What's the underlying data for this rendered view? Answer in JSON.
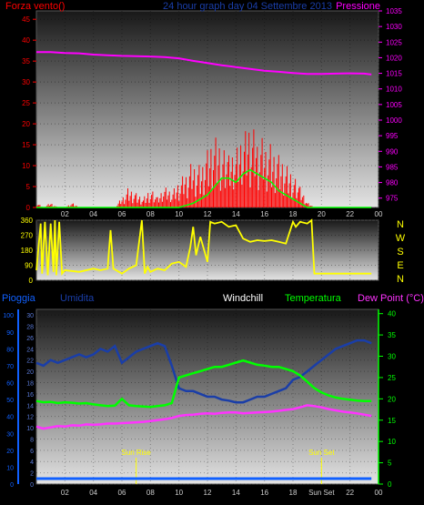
{
  "colors": {
    "wind": "#ff0000",
    "gust": "#00ff00",
    "pressure": "#ff00ff",
    "direction": "#ffff00",
    "rain": "#1060ff",
    "humidity": "#1a3ea8",
    "windchill": "#ffffff",
    "temperature": "#00ff00",
    "dewpoint": "#ff33ff",
    "axis": "#bbbbbb"
  },
  "chart_data": [
    {
      "type": "line",
      "id": "wind-pressure",
      "title": "24 hour graph day  04 Settembre 2013",
      "left_label": "Forza vento()",
      "right_label": "Pressione",
      "x_ticks": [
        "02",
        "04",
        "06",
        "08",
        "10",
        "12",
        "14",
        "16",
        "18",
        "20",
        "22",
        "00"
      ],
      "ylim_left": [
        0,
        47
      ],
      "yticks_left": [
        "0",
        "5",
        "10",
        "15",
        "20",
        "25",
        "30",
        "35",
        "40",
        "45"
      ],
      "ylim_right": [
        972,
        1035
      ],
      "yticks_right": [
        "975",
        "980",
        "985",
        "990",
        "995",
        "1000",
        "1005",
        "1010",
        "1015",
        "1020",
        "1025",
        "1030",
        "1035"
      ],
      "x_hours": [
        0,
        23.5
      ],
      "series": [
        {
          "role": "pressure",
          "axis": "right",
          "x": [
            0,
            1,
            2,
            3,
            4,
            5,
            6,
            7,
            8,
            9,
            10,
            11,
            12,
            13,
            14,
            15,
            16,
            17,
            18,
            19,
            20,
            21,
            22,
            23,
            23.5
          ],
          "y": [
            1021.8,
            1021.8,
            1021.5,
            1021.4,
            1021.0,
            1020.8,
            1020.6,
            1020.5,
            1020.4,
            1020.2,
            1019.8,
            1019.0,
            1018.3,
            1017.6,
            1017.0,
            1016.4,
            1015.8,
            1015.5,
            1015.1,
            1014.8,
            1014.8,
            1014.9,
            1015.0,
            1014.9,
            1014.6
          ]
        },
        {
          "role": "wind",
          "axis": "left",
          "x": [
            0,
            0.5,
            1,
            1.5,
            2,
            2.5,
            3,
            3.5,
            4,
            4.5,
            5,
            5.5,
            6,
            6.5,
            7,
            7.5,
            8,
            8.5,
            9,
            9.5,
            10,
            10.5,
            11,
            11.5,
            12,
            12.5,
            13,
            13.5,
            14,
            14.5,
            15,
            15.5,
            16,
            16.5,
            17,
            17.5,
            18,
            18.5,
            19,
            19.5,
            20,
            21,
            22,
            23,
            23.5
          ],
          "y": [
            1,
            0,
            1,
            0,
            0,
            1,
            0,
            0,
            0,
            0,
            0,
            0,
            2,
            4,
            3,
            2,
            4,
            2,
            4,
            3,
            5,
            7,
            9,
            8,
            12,
            15,
            13,
            10,
            11,
            14,
            16,
            14,
            13,
            12,
            11,
            9,
            7,
            4,
            1,
            0,
            0,
            0,
            0,
            0,
            0
          ]
        },
        {
          "role": "gust",
          "axis": "left",
          "x": [
            0,
            10,
            10.5,
            11,
            11.5,
            12,
            12.5,
            13,
            13.5,
            14,
            14.5,
            15,
            15.5,
            16,
            16.5,
            17,
            17.5,
            18,
            18.5,
            19,
            23.5
          ],
          "y": [
            0,
            0,
            0.5,
            1,
            2,
            3,
            5,
            7,
            7,
            6,
            8,
            9,
            8,
            7,
            6,
            4,
            3,
            2,
            1,
            0,
            0
          ]
        }
      ]
    },
    {
      "type": "line",
      "id": "wind-direction",
      "yticks": [
        "0",
        "90",
        "180",
        "270",
        "360"
      ],
      "ylim": [
        0,
        360
      ],
      "direction_labels": [
        "N",
        "W",
        "S",
        "E",
        "N"
      ],
      "series": [
        {
          "role": "direction",
          "x": [
            0,
            0.3,
            0.4,
            0.6,
            0.8,
            1.0,
            1.2,
            1.3,
            1.4,
            1.6,
            1.8,
            2,
            3,
            4,
            4.5,
            5,
            5.2,
            5.4,
            5.6,
            6,
            6.5,
            7,
            7.4,
            7.6,
            7.8,
            8,
            8.5,
            9,
            9.5,
            10,
            10.5,
            10.8,
            11,
            11.2,
            11.5,
            12,
            12.2,
            12.5,
            13,
            13.5,
            14,
            14.5,
            15,
            15.5,
            16,
            16.5,
            17,
            17.5,
            18,
            18.2,
            18.5,
            19,
            19.3,
            19.5,
            20,
            21,
            22,
            23,
            23.5
          ],
          "y": [
            60,
            340,
            40,
            350,
            30,
            340,
            50,
            360,
            30,
            350,
            40,
            60,
            50,
            70,
            60,
            70,
            300,
            70,
            60,
            40,
            70,
            90,
            360,
            40,
            80,
            50,
            70,
            60,
            100,
            110,
            80,
            200,
            320,
            150,
            260,
            110,
            350,
            340,
            350,
            320,
            330,
            250,
            230,
            240,
            235,
            240,
            230,
            220,
            350,
            320,
            350,
            340,
            360,
            40,
            40,
            40,
            40,
            40,
            40
          ]
        }
      ]
    },
    {
      "type": "line",
      "id": "humidity-temperature",
      "labels": {
        "rain": "Pioggia",
        "humidity": "Umidita",
        "windchill": "Windchill",
        "temperature": "Temperatura",
        "dewpoint": "Dew Point (°C)"
      },
      "yticks_rain": [
        "0",
        "10",
        "20",
        "30",
        "40",
        "50",
        "60",
        "70",
        "80",
        "90",
        "100"
      ],
      "yticks_humidity": [
        "0",
        "2",
        "4",
        "6",
        "8",
        "10",
        "12",
        "14",
        "16",
        "18",
        "20",
        "22",
        "24",
        "26",
        "28",
        "30"
      ],
      "yticks_temp": [
        "0",
        "5",
        "10",
        "15",
        "20",
        "25",
        "30",
        "35",
        "40"
      ],
      "ylim_humidity": [
        0,
        31
      ],
      "ylim_temp": [
        0,
        41
      ],
      "x_ticks": [
        "02",
        "04",
        "06",
        "08",
        "10",
        "12",
        "14",
        "16",
        "18",
        "Sun Set",
        "22",
        "00"
      ],
      "sun_rise": {
        "label": "Sun Rise",
        "hour": 7.0
      },
      "sun_set": {
        "label": "Sun Set",
        "hour": 20.0
      },
      "series": [
        {
          "role": "humidity",
          "x": [
            0,
            0.5,
            1,
            1.5,
            2,
            2.5,
            3,
            3.5,
            4,
            4.5,
            5,
            5.5,
            6,
            6.5,
            7,
            7.5,
            8,
            8.5,
            9,
            9.5,
            10,
            10.5,
            11,
            11.5,
            12,
            12.5,
            13,
            13.5,
            14,
            14.5,
            15,
            15.5,
            16,
            16.5,
            17,
            17.5,
            18,
            18.5,
            19,
            19.5,
            20,
            20.5,
            21,
            21.5,
            22,
            22.5,
            23,
            23.5
          ],
          "y": [
            21.5,
            21,
            22,
            21.5,
            22,
            22.5,
            23,
            22.5,
            23,
            24,
            23.5,
            24.5,
            21.5,
            22.5,
            23.5,
            24,
            24.5,
            25,
            24.5,
            21,
            17,
            16.5,
            16.5,
            16,
            15.5,
            15.5,
            15,
            14.8,
            14.5,
            14.5,
            15,
            15.5,
            15.5,
            16,
            16.5,
            17,
            18.5,
            19,
            20,
            21,
            22,
            23,
            24,
            24.5,
            25,
            25.5,
            25.5,
            25
          ]
        },
        {
          "role": "temperature",
          "x": [
            0,
            0.5,
            1,
            1.5,
            2,
            2.5,
            3,
            3.5,
            4,
            4.5,
            5,
            5.5,
            6,
            6.5,
            7,
            7.5,
            8,
            8.5,
            9,
            9.5,
            10,
            10.5,
            11,
            11.5,
            12,
            12.5,
            13,
            13.5,
            14,
            14.5,
            15,
            15.5,
            16,
            16.5,
            17,
            17.5,
            18,
            18.5,
            19,
            19.5,
            20,
            20.5,
            21,
            21.5,
            22,
            22.5,
            23,
            23.5
          ],
          "y": [
            19.5,
            19.2,
            19.3,
            19,
            19.2,
            19.1,
            18.9,
            19,
            18.7,
            18.5,
            18.3,
            18.4,
            20,
            18.5,
            18.3,
            18.2,
            18.1,
            18.3,
            18.5,
            19,
            25,
            25.5,
            26,
            26.5,
            27,
            27.5,
            27.5,
            28,
            28.5,
            29,
            28.5,
            28,
            27.8,
            27.5,
            27.5,
            27,
            26.5,
            25.5,
            24,
            22.5,
            21.5,
            20.8,
            20.3,
            20,
            19.8,
            19.6,
            19.5,
            19.5
          ]
        },
        {
          "role": "dewpoint",
          "x": [
            0,
            0.5,
            1,
            1.5,
            2,
            2.5,
            3,
            3.5,
            4,
            4.5,
            5,
            5.5,
            6,
            6.5,
            7,
            7.5,
            8,
            8.5,
            9,
            9.5,
            10,
            10.5,
            11,
            11.5,
            12,
            12.5,
            13,
            13.5,
            14,
            14.5,
            15,
            15.5,
            16,
            16.5,
            17,
            17.5,
            18,
            18.5,
            19,
            19.5,
            20,
            20.5,
            21,
            21.5,
            22,
            22.5,
            23,
            23.5
          ],
          "y": [
            13.5,
            13,
            13.3,
            13.6,
            13.5,
            13.8,
            13.7,
            14,
            13.9,
            14,
            14.2,
            14.2,
            14.3,
            14.4,
            14.5,
            14.6,
            14.8,
            15,
            15.2,
            15.5,
            16,
            16.2,
            16.3,
            16.5,
            16.6,
            16.5,
            16.7,
            16.8,
            16.8,
            16.6,
            16.7,
            16.8,
            16.9,
            17,
            17.2,
            17.4,
            17.6,
            18,
            18.5,
            18.3,
            18,
            17.6,
            17.3,
            17,
            16.8,
            16.6,
            16.3,
            16
          ]
        },
        {
          "role": "rain",
          "x": [
            0,
            23.5
          ],
          "y": [
            0,
            0
          ]
        }
      ]
    }
  ]
}
